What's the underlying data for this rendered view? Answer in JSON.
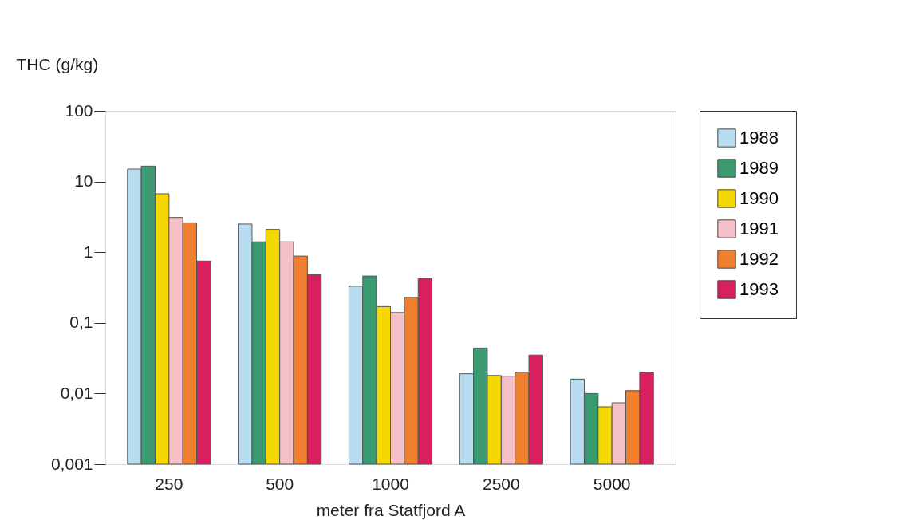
{
  "chart_data": {
    "type": "bar",
    "ylabel": "THC (g/kg)",
    "xlabel": "meter fra Statfjord A",
    "categories": [
      "250",
      "500",
      "1000",
      "2500",
      "5000"
    ],
    "series": [
      {
        "name": "1988",
        "color": "#b8dcf0",
        "values": [
          15,
          2.5,
          0.33,
          0.019,
          0.016
        ]
      },
      {
        "name": "1989",
        "color": "#3a9a70",
        "values": [
          16.5,
          1.4,
          0.46,
          0.044,
          0.01
        ]
      },
      {
        "name": "1990",
        "color": "#f5d800",
        "values": [
          6.7,
          2.1,
          0.17,
          0.018,
          0.0065
        ]
      },
      {
        "name": "1991",
        "color": "#f6c0c8",
        "values": [
          3.1,
          1.4,
          0.14,
          0.0176,
          0.0074
        ]
      },
      {
        "name": "1992",
        "color": "#f08030",
        "values": [
          2.6,
          0.88,
          0.23,
          0.02,
          0.011
        ]
      },
      {
        "name": "1993",
        "color": "#d82060",
        "values": [
          0.75,
          0.48,
          0.42,
          0.035,
          0.02
        ]
      }
    ],
    "log": "y",
    "ylim": [
      0.001,
      100
    ],
    "yticks": [
      {
        "value": 0.001,
        "label": "0,001"
      },
      {
        "value": 0.01,
        "label": "0,01"
      },
      {
        "value": 0.1,
        "label": "0,1"
      },
      1,
      10,
      100
    ],
    "grid": false,
    "legend": "right"
  }
}
